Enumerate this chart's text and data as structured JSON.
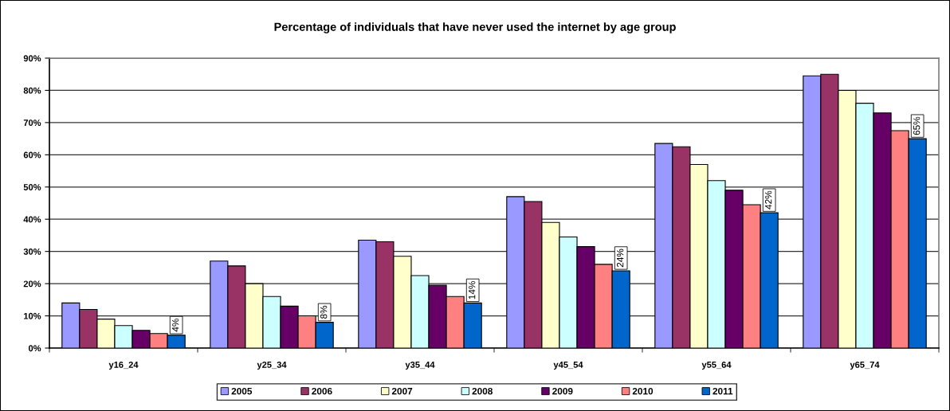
{
  "chart_data": {
    "type": "bar",
    "title": "Percentage of individuals that have never used the internet by age group",
    "categories": [
      "y16_24",
      "y25_34",
      "y35_44",
      "y45_54",
      "y55_64",
      "y65_74"
    ],
    "series": [
      {
        "name": "2005",
        "color": "#9999ff",
        "values": [
          14,
          27,
          33.5,
          47,
          63.5,
          84.5
        ]
      },
      {
        "name": "2006",
        "color": "#993366",
        "values": [
          12,
          25.5,
          33,
          45.5,
          62.5,
          85
        ]
      },
      {
        "name": "2007",
        "color": "#ffffcc",
        "values": [
          9,
          20,
          28.5,
          39,
          57,
          80
        ]
      },
      {
        "name": "2008",
        "color": "#ccffff",
        "values": [
          7,
          16,
          22.5,
          34.5,
          52,
          76
        ]
      },
      {
        "name": "2009",
        "color": "#660066",
        "values": [
          5.5,
          13,
          19.5,
          31.5,
          49,
          73
        ]
      },
      {
        "name": "2010",
        "color": "#ff8080",
        "values": [
          4.5,
          10,
          16,
          26,
          44.5,
          67.5
        ]
      },
      {
        "name": "2011",
        "color": "#0066cc",
        "values": [
          4,
          8,
          14,
          24,
          42,
          65
        ],
        "value_labels": [
          "4%",
          "8%",
          "14%",
          "24%",
          "42%",
          "65%"
        ]
      }
    ],
    "ylim": [
      0,
      90
    ],
    "yticks": [
      {
        "value": 0,
        "label": "0%"
      },
      {
        "value": 10,
        "label": "10%"
      },
      {
        "value": 20,
        "label": "20%"
      },
      {
        "value": 30,
        "label": "30%"
      },
      {
        "value": 40,
        "label": "40%"
      },
      {
        "value": 50,
        "label": "50%"
      },
      {
        "value": 60,
        "label": "60%"
      },
      {
        "value": 70,
        "label": "70%"
      },
      {
        "value": 80,
        "label": "80%"
      },
      {
        "value": 90,
        "label": "90%"
      }
    ],
    "grid": "y",
    "legend": "bottom"
  }
}
